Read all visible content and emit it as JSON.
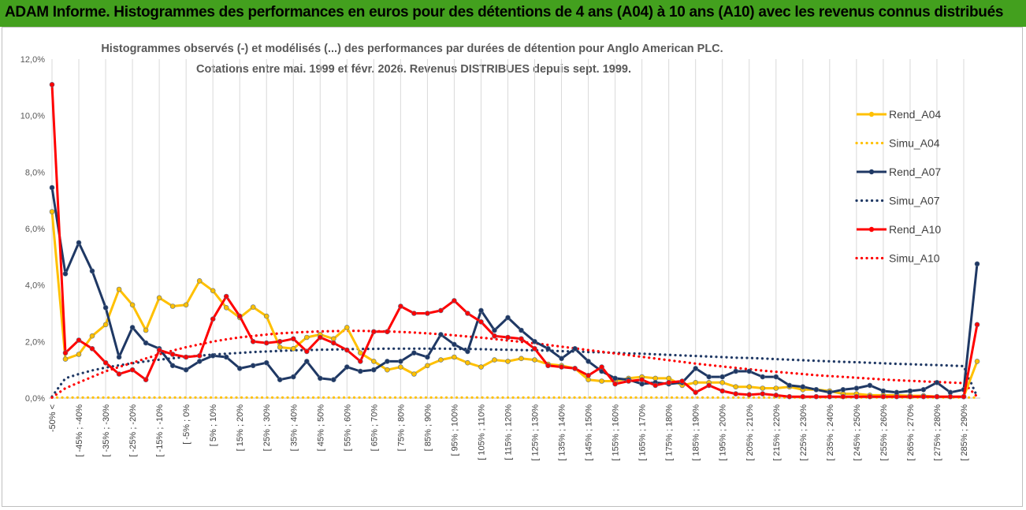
{
  "banner": {
    "title": "ADAM Informe. Histogrammes des performances en euros pour des détentions de 4 ans (A04) à 10 ans (A10) avec les revenus connus distribués"
  },
  "colors": {
    "banner": "#43a01e",
    "Rend_A04": "#ffc000",
    "Simu_A04": "#ffc000",
    "Rend_A07": "#1f3864",
    "Simu_A07": "#1f3864",
    "Rend_A10": "#ff0000",
    "Simu_A10": "#ff0000"
  },
  "chart_data": {
    "type": "line",
    "title": "Histogrammes observés (-) et modélisés (...) des performances par durées de détention pour Anglo American PLC.",
    "subtitle": "Cotations entre mai. 1999 et févr. 2026. Revenus DISTRIBUES depuis sept. 1999.",
    "xlabel": "",
    "ylabel": "",
    "ylim": [
      0,
      12
    ],
    "yticks": [
      "0,0%",
      "2,0%",
      "4,0%",
      "6,0%",
      "8,0%",
      "10,0%",
      "12,0%"
    ],
    "yticks_values": [
      0,
      2,
      4,
      6,
      8,
      10,
      12
    ],
    "grid": "vertical every second category",
    "legend_position": "right",
    "xtick_labels": [
      "-50% <",
      "[ -45% ; -40%",
      "[ -35% ; -30%",
      "[ -25% ; -20%",
      "[ -15% ; -10%",
      "[ -5% ; 0%",
      "[ 5% ; 10%",
      "[ 15% ; 20%",
      "[ 25% ; 30%",
      "[ 35% ; 40%",
      "[ 45% ; 50%",
      "[ 55% ; 60%",
      "[ 65% ; 70%",
      "[ 75% ; 80%",
      "[ 85% ; 90%",
      "[ 95% ; 100%",
      "[ 105% ; 110%",
      "[ 115% ; 120%",
      "[ 125% ; 130%",
      "[ 135% ; 140%",
      "[ 145% ; 150%",
      "[ 155% ; 160%",
      "[ 165% ; 170%",
      "[ 175% ; 180%",
      "[ 185% ; 190%",
      "[ 195% ; 200%",
      "[ 205% ; 210%",
      "[ 215% ; 220%",
      "[ 225% ; 230%",
      "[ 235% ; 240%",
      "[ 245% ; 250%",
      "[ 255% ; 260%",
      "[ 265% ; 270%",
      "[ 275% ; 280%",
      "[ 285% ; 290%"
    ],
    "category_count": 70,
    "series": [
      {
        "name": "Rend_A04",
        "style": "solid-marker",
        "values": [
          6.6,
          1.38,
          1.55,
          2.2,
          2.6,
          3.85,
          3.3,
          2.4,
          3.55,
          3.25,
          3.3,
          4.15,
          3.8,
          3.2,
          2.85,
          3.22,
          2.9,
          1.8,
          1.75,
          2.15,
          2.25,
          2.1,
          2.5,
          1.6,
          1.3,
          1.0,
          1.1,
          0.85,
          1.15,
          1.35,
          1.45,
          1.25,
          1.1,
          1.35,
          1.3,
          1.4,
          1.35,
          1.2,
          1.15,
          1.05,
          0.65,
          0.6,
          0.6,
          0.7,
          0.75,
          0.7,
          0.7,
          0.45,
          0.55,
          0.55,
          0.55,
          0.4,
          0.4,
          0.35,
          0.35,
          0.4,
          0.3,
          0.3,
          0.25,
          0.15,
          0.15,
          0.1,
          0.1,
          0.1,
          0.08,
          0.08,
          0.05,
          0.05,
          0.05,
          1.3
        ]
      },
      {
        "name": "Simu_A04",
        "style": "dotted",
        "values": [
          0.02,
          0.02,
          0.02,
          0.02,
          0.02,
          0.02,
          0.02,
          0.02,
          0.02,
          0.02,
          0.02,
          0.02,
          0.02,
          0.02,
          0.02,
          0.02,
          0.02,
          0.02,
          0.02,
          0.02,
          0.02,
          0.02,
          0.02,
          0.02,
          0.02,
          0.02,
          0.02,
          0.02,
          0.02,
          0.02,
          0.02,
          0.02,
          0.02,
          0.02,
          0.02,
          0.02,
          0.02,
          0.02,
          0.02,
          0.02,
          0.02,
          0.02,
          0.02,
          0.02,
          0.02,
          0.02,
          0.02,
          0.02,
          0.02,
          0.02,
          0.02,
          0.02,
          0.02,
          0.02,
          0.02,
          0.02,
          0.02,
          0.02,
          0.02,
          0.02,
          0.02,
          0.02,
          0.02,
          0.02,
          0.02,
          0.02,
          0.02,
          0.02,
          0.02,
          0.02
        ]
      },
      {
        "name": "Rend_A07",
        "style": "solid-marker",
        "values": [
          7.45,
          4.4,
          5.5,
          4.5,
          3.2,
          1.45,
          2.5,
          1.95,
          1.75,
          1.15,
          1.0,
          1.3,
          1.5,
          1.45,
          1.05,
          1.15,
          1.25,
          0.65,
          0.75,
          1.3,
          0.7,
          0.65,
          1.1,
          0.95,
          1.0,
          1.3,
          1.3,
          1.6,
          1.45,
          2.25,
          1.9,
          1.65,
          3.1,
          2.4,
          2.85,
          2.4,
          2.0,
          1.75,
          1.4,
          1.75,
          1.3,
          0.95,
          0.7,
          0.65,
          0.5,
          0.55,
          0.5,
          0.55,
          1.05,
          0.75,
          0.75,
          0.95,
          0.95,
          0.75,
          0.75,
          0.45,
          0.4,
          0.3,
          0.2,
          0.3,
          0.35,
          0.45,
          0.25,
          0.2,
          0.25,
          0.3,
          0.55,
          0.2,
          0.3,
          4.75
        ]
      },
      {
        "name": "Simu_A07",
        "style": "dotted",
        "values": [
          0.05,
          0.7,
          0.85,
          0.98,
          1.08,
          1.16,
          1.23,
          1.3,
          1.36,
          1.41,
          1.46,
          1.5,
          1.54,
          1.57,
          1.6,
          1.63,
          1.65,
          1.67,
          1.69,
          1.7,
          1.71,
          1.72,
          1.73,
          1.74,
          1.74,
          1.75,
          1.75,
          1.75,
          1.75,
          1.75,
          1.74,
          1.74,
          1.73,
          1.72,
          1.71,
          1.7,
          1.69,
          1.68,
          1.66,
          1.65,
          1.63,
          1.62,
          1.6,
          1.58,
          1.57,
          1.55,
          1.53,
          1.51,
          1.49,
          1.47,
          1.45,
          1.43,
          1.42,
          1.4,
          1.38,
          1.36,
          1.34,
          1.32,
          1.3,
          1.28,
          1.27,
          1.25,
          1.23,
          1.21,
          1.2,
          1.18,
          1.17,
          1.15,
          1.13,
          0.05
        ]
      },
      {
        "name": "Rend_A10",
        "style": "solid-marker",
        "values": [
          11.1,
          1.6,
          2.05,
          1.75,
          1.25,
          0.85,
          1.0,
          0.65,
          1.7,
          1.55,
          1.45,
          1.5,
          2.8,
          3.6,
          2.9,
          2.0,
          1.95,
          2.0,
          2.1,
          1.65,
          2.15,
          1.95,
          1.7,
          1.3,
          2.35,
          2.35,
          3.25,
          3.0,
          3.0,
          3.1,
          3.45,
          3.0,
          2.7,
          2.2,
          2.15,
          2.1,
          1.75,
          1.15,
          1.1,
          1.05,
          0.8,
          1.1,
          0.5,
          0.6,
          0.65,
          0.45,
          0.55,
          0.6,
          0.2,
          0.45,
          0.25,
          0.15,
          0.12,
          0.15,
          0.1,
          0.05,
          0.05,
          0.05,
          0.05,
          0.05,
          0.05,
          0.05,
          0.05,
          0.05,
          0.05,
          0.05,
          0.05,
          0.05,
          0.05,
          2.6
        ]
      },
      {
        "name": "Simu_A10",
        "style": "dotted",
        "values": [
          0.02,
          0.35,
          0.55,
          0.75,
          0.95,
          1.1,
          1.25,
          1.4,
          1.55,
          1.68,
          1.8,
          1.9,
          2.0,
          2.08,
          2.15,
          2.2,
          2.25,
          2.29,
          2.32,
          2.34,
          2.36,
          2.37,
          2.38,
          2.38,
          2.37,
          2.36,
          2.34,
          2.32,
          2.29,
          2.26,
          2.22,
          2.18,
          2.14,
          2.09,
          2.04,
          1.99,
          1.94,
          1.88,
          1.82,
          1.76,
          1.7,
          1.64,
          1.58,
          1.52,
          1.46,
          1.4,
          1.34,
          1.28,
          1.22,
          1.17,
          1.12,
          1.07,
          1.02,
          0.97,
          0.93,
          0.89,
          0.85,
          0.81,
          0.78,
          0.75,
          0.72,
          0.69,
          0.66,
          0.63,
          0.61,
          0.59,
          0.57,
          0.55,
          0.53,
          0.05
        ]
      }
    ]
  }
}
